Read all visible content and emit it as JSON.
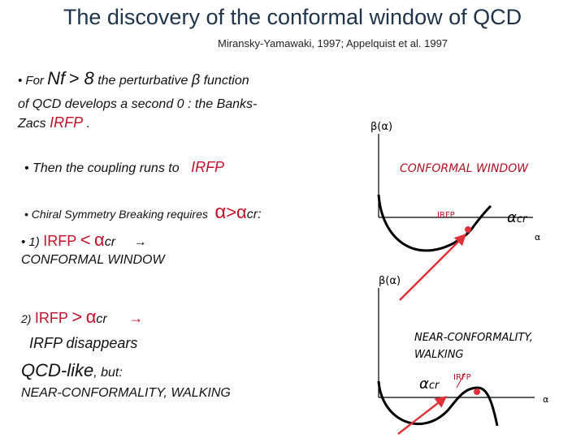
{
  "title": "The discovery of the conformal window of QCD",
  "subtitle": "Miransky-Yamawaki, 1997; Appelquist et al. 1997",
  "bullets": {
    "b1": {
      "prefix": "• For ",
      "nf": "Nf",
      "gt8": "> 8",
      "mid": " the perturbative ",
      "beta": "β",
      "suffix": " function",
      "line2": "of QCD develops a second 0 : the Banks-",
      "line3a": "Zacs ",
      "irfp": "IRFP",
      "line3b": " ."
    },
    "b2": {
      "text": "• Then the coupling runs to",
      "irfp": "IRFP"
    },
    "b3": {
      "text": "• Chiral Symmetry Breaking requires",
      "alpha": "α",
      "gt": ">",
      "alpha2": "α",
      "cr": "cr:"
    },
    "case1": {
      "prefix": "•  1)",
      "irfp": "IRFP",
      "lt": "<",
      "alpha": "α",
      "cr": "cr",
      "arrow": "→",
      "result": "CONFORMAL WINDOW"
    },
    "case2": {
      "prefix": "2)",
      "irfp": "IRFP",
      "gt": ">",
      "alpha": "α",
      "cr": "cr",
      "arrow": "→",
      "disappears": "IRFP disappears",
      "qcdlike": "QCD-like",
      "but": ", but:",
      "near": "NEAR-CONFORMALITY, WALKING"
    }
  },
  "graph1": {
    "ylabel": "β(α)",
    "window_label": "CONFORMAL WINDOW",
    "irfp_label": "IRFP",
    "alpha_cr": "α",
    "alpha_cr_sub": "cr",
    "xlabel": "α"
  },
  "graph2": {
    "ylabel": "β(α)",
    "near_label_1": "NEAR-CONFORMALITY,",
    "near_label_2": "WALKING",
    "alpha_cr": "α",
    "alpha_cr_sub": "cr",
    "irfp_label": "IRFP",
    "xlabel": "α"
  },
  "colors": {
    "accent": "#c0122a",
    "title": "#1f3349",
    "window_label": "#b01228"
  }
}
